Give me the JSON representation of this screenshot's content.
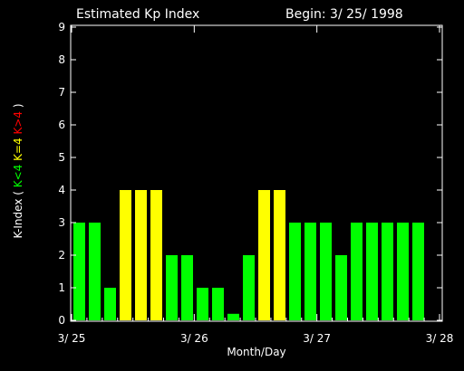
{
  "colors": {
    "background": "#000000",
    "foreground": "#ffffff",
    "green": "#00ff00",
    "yellow": "#ffff00",
    "red": "#ff0000"
  },
  "header": {
    "title": "Estimated Kp Index",
    "begin": "Begin: 3/ 25/ 1998"
  },
  "chart_data": {
    "type": "bar",
    "title": "Estimated Kp Index",
    "xlabel": "Month/Day",
    "ylabel_parts": [
      {
        "text": "K-Index (",
        "color": "#ffffff"
      },
      {
        "text": "K<4",
        "color": "#00ff00"
      },
      {
        "text": "K=4",
        "color": "#ffff00"
      },
      {
        "text": "K>4",
        "color": "#ff0000"
      },
      {
        "text": ")",
        "color": "#ffffff"
      }
    ],
    "ylim": [
      0,
      9
    ],
    "yticks": [
      "0",
      "1",
      "2",
      "3",
      "4",
      "5",
      "6",
      "7",
      "8",
      "9"
    ],
    "xlim": [
      0,
      24
    ],
    "xticks": [
      {
        "label": "3/ 25",
        "at": 0
      },
      {
        "label": "3/ 26",
        "at": 8
      },
      {
        "label": "3/ 27",
        "at": 16
      },
      {
        "label": "3/ 28",
        "at": 24
      }
    ],
    "values": [
      3,
      3,
      1,
      4,
      4,
      4,
      2,
      2,
      1,
      1,
      0.2,
      2,
      4,
      4,
      3,
      3,
      3,
      2,
      3,
      3,
      3,
      3,
      3
    ],
    "color_rule": "green if K<4, yellow if K=4, red if K>4",
    "grid": false,
    "legend": "none"
  }
}
